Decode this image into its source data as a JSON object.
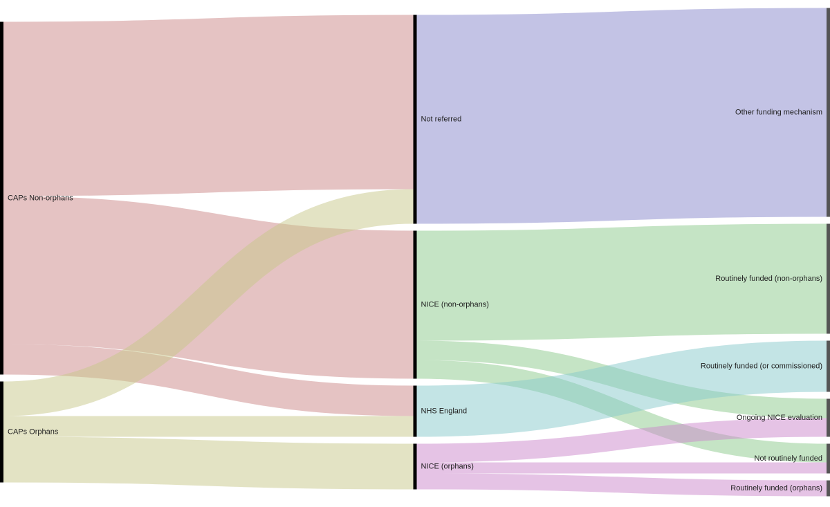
{
  "chart_data": {
    "type": "sankey",
    "nodes": [
      {
        "name": "CAPs Non-orphans",
        "color": "#cc8888"
      },
      {
        "name": "CAPs Orphans",
        "color": "#c8c88a"
      },
      {
        "name": "Not referred",
        "color": "#8888cc"
      },
      {
        "name": "NICE (non-orphans)",
        "color": "#8cca8c"
      },
      {
        "name": "NHS England",
        "color": "#88cacc"
      },
      {
        "name": "NICE (orphans)",
        "color": "#cc88cc"
      },
      {
        "name": "Other funding mechanism",
        "color": "#555555"
      },
      {
        "name": "Routinely funded (non-orphans)",
        "color": "#555555"
      },
      {
        "name": "Routinely funded (or commissioned)",
        "color": "#555555"
      },
      {
        "name": "Ongoing NICE evaluation",
        "color": "#555555"
      },
      {
        "name": "Not routinely funded",
        "color": "#555555"
      },
      {
        "name": "Routinely funded (orphans)",
        "color": "#555555"
      }
    ],
    "links": [
      {
        "source": 0,
        "target": 2,
        "value": 252
      },
      {
        "source": 0,
        "target": 3,
        "value": 214
      },
      {
        "source": 0,
        "target": 4,
        "value": 44
      },
      {
        "source": 1,
        "target": 2,
        "value": 50
      },
      {
        "source": 1,
        "target": 4,
        "value": 30
      },
      {
        "source": 1,
        "target": 5,
        "value": 66
      },
      {
        "source": 2,
        "target": 6,
        "value": 302
      },
      {
        "source": 3,
        "target": 7,
        "value": 159
      },
      {
        "source": 3,
        "target": 9,
        "value": 28
      },
      {
        "source": 3,
        "target": 10,
        "value": 27
      },
      {
        "source": 4,
        "target": 8,
        "value": 74
      },
      {
        "source": 5,
        "target": 9,
        "value": 27
      },
      {
        "source": 5,
        "target": 10,
        "value": 16
      },
      {
        "source": 5,
        "target": 11,
        "value": 23
      }
    ]
  }
}
